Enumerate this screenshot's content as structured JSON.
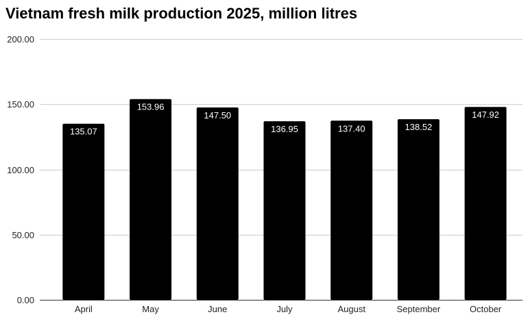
{
  "chart_data": {
    "type": "bar",
    "title": "Vietnam fresh milk production 2025, million litres",
    "xlabel": "",
    "ylabel": "",
    "categories": [
      "April",
      "May",
      "June",
      "July",
      "August",
      "September",
      "October"
    ],
    "values": [
      135.07,
      153.96,
      147.5,
      136.95,
      137.4,
      138.52,
      147.92
    ],
    "value_labels": [
      "135.07",
      "153.96",
      "147.50",
      "136.95",
      "137.40",
      "138.52",
      "147.92"
    ],
    "ylim": [
      0,
      200
    ],
    "yticks": [
      0,
      50,
      100,
      150,
      200
    ],
    "ytick_labels": [
      "0.00",
      "50.00",
      "100.00",
      "150.00",
      "200.00"
    ],
    "grid": true,
    "legend": "none",
    "bar_color": "#000000",
    "label_color": "#ffffff",
    "grid_color": "#cccccc"
  }
}
